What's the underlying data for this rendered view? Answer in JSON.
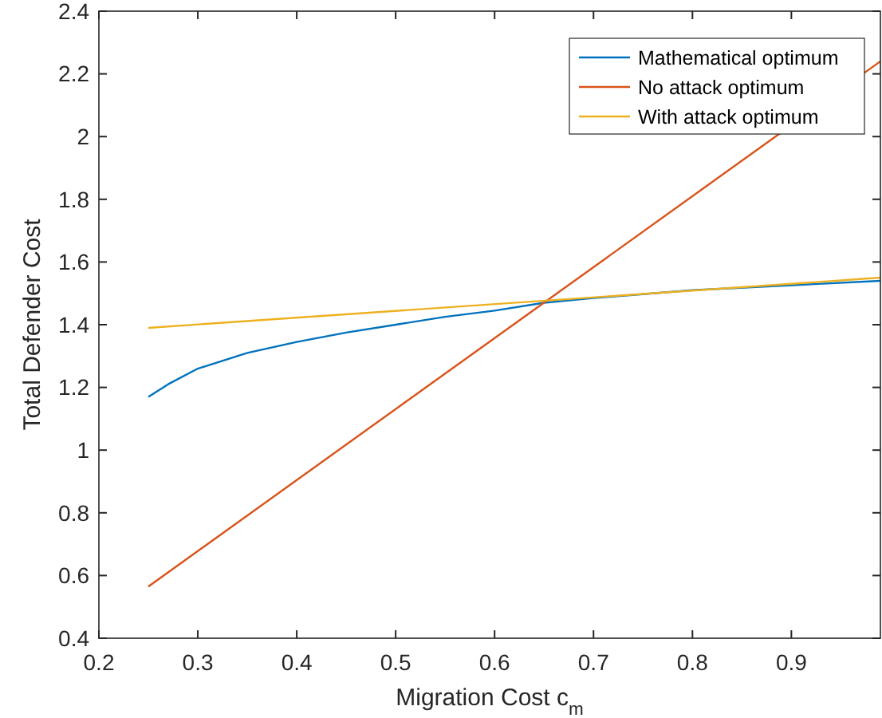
{
  "chart_data": {
    "type": "line",
    "xlabel": "Migration Cost c$_{m}$",
    "ylabel": "Total Defender Cost",
    "xlim": [
      0.2,
      0.99
    ],
    "xticks": [
      0.2,
      0.3,
      0.4,
      0.5,
      0.6,
      0.7,
      0.8,
      0.9
    ],
    "ylim": [
      0.4,
      2.4
    ],
    "yticks": [
      0.4,
      0.6,
      0.8,
      1,
      1.2,
      1.4,
      1.6,
      1.8,
      2,
      2.2,
      2.4
    ],
    "grid": false,
    "legend": "top right",
    "marker": "none",
    "line_style": "solid",
    "series": [
      {
        "name": "Mathematical optimum",
        "color": "#0072bd",
        "x": [
          0.25,
          0.27,
          0.3,
          0.35,
          0.4,
          0.45,
          0.5,
          0.55,
          0.6,
          0.65,
          0.7,
          0.8,
          0.99
        ],
        "values": [
          1.17,
          1.21,
          1.26,
          1.31,
          1.345,
          1.375,
          1.4,
          1.425,
          1.445,
          1.47,
          1.485,
          1.51,
          1.54
        ]
      },
      {
        "name": "No attack optimum",
        "color": "#d95319",
        "x": [
          0.25,
          0.99
        ],
        "values": [
          0.565,
          2.24
        ]
      },
      {
        "name": "With attack optimum",
        "color": "#edb120",
        "x": [
          0.25,
          0.99
        ],
        "values": [
          1.39,
          1.55
        ]
      }
    ]
  }
}
